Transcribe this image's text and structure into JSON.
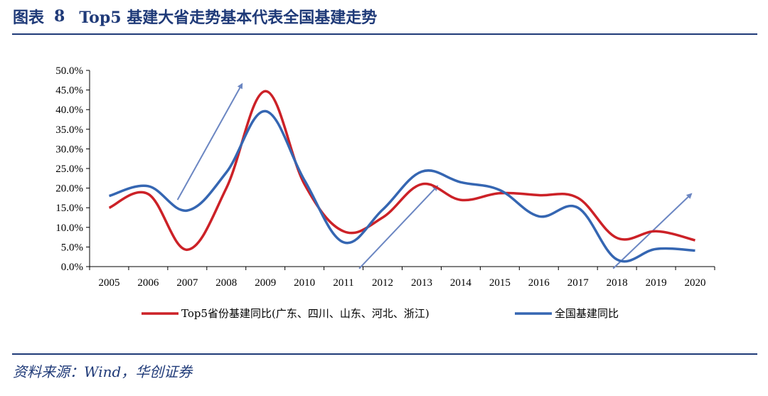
{
  "header": {
    "figure_label": "图表",
    "figure_number": "8",
    "title": "Top5 基建大省走势基本代表全国基建走势"
  },
  "footer": {
    "source": "资料来源：Wind，华创证券"
  },
  "colors": {
    "title": "#1f3a78",
    "series_top5": "#cc2127",
    "series_national": "#3566b2",
    "arrow": "#6b86c2"
  },
  "chart_data": {
    "type": "line",
    "title": "Top5 基建大省走势基本代表全国基建走势",
    "xlabel": "",
    "ylabel": "",
    "x": [
      "2005",
      "2006",
      "2007",
      "2008",
      "2009",
      "2010",
      "2011",
      "2012",
      "2013",
      "2014",
      "2015",
      "2016",
      "2017",
      "2018",
      "2019",
      "2020"
    ],
    "ylim": [
      0,
      50
    ],
    "yticks": [
      "0.0%",
      "5.0%",
      "10.0%",
      "15.0%",
      "20.0%",
      "25.0%",
      "30.0%",
      "35.0%",
      "40.0%",
      "45.0%",
      "50.0%"
    ],
    "legend_position": "bottom",
    "series": [
      {
        "name": "Top5省份基建同比(广东、四川、山东、河北、浙江)",
        "values": [
          15.0,
          18.5,
          4.3,
          20.0,
          44.7,
          21.0,
          9.0,
          12.5,
          21.0,
          17.0,
          18.7,
          18.2,
          17.5,
          7.3,
          9.0,
          6.7
        ]
      },
      {
        "name": "全国基建同比",
        "values": [
          18.0,
          20.5,
          14.3,
          24.0,
          39.6,
          22.0,
          6.2,
          14.5,
          24.2,
          21.5,
          19.5,
          12.8,
          15.0,
          1.8,
          4.5,
          4.1
        ]
      }
    ],
    "annotations": [
      {
        "type": "arrow",
        "from": [
          2006.75,
          17.0
        ],
        "to": [
          2008.4,
          46.5
        ]
      },
      {
        "type": "arrow",
        "from": [
          2011.4,
          -0.5
        ],
        "to": [
          2013.4,
          20.5
        ]
      },
      {
        "type": "arrow",
        "from": [
          2017.9,
          -0.5
        ],
        "to": [
          2019.9,
          18.5
        ]
      }
    ]
  }
}
